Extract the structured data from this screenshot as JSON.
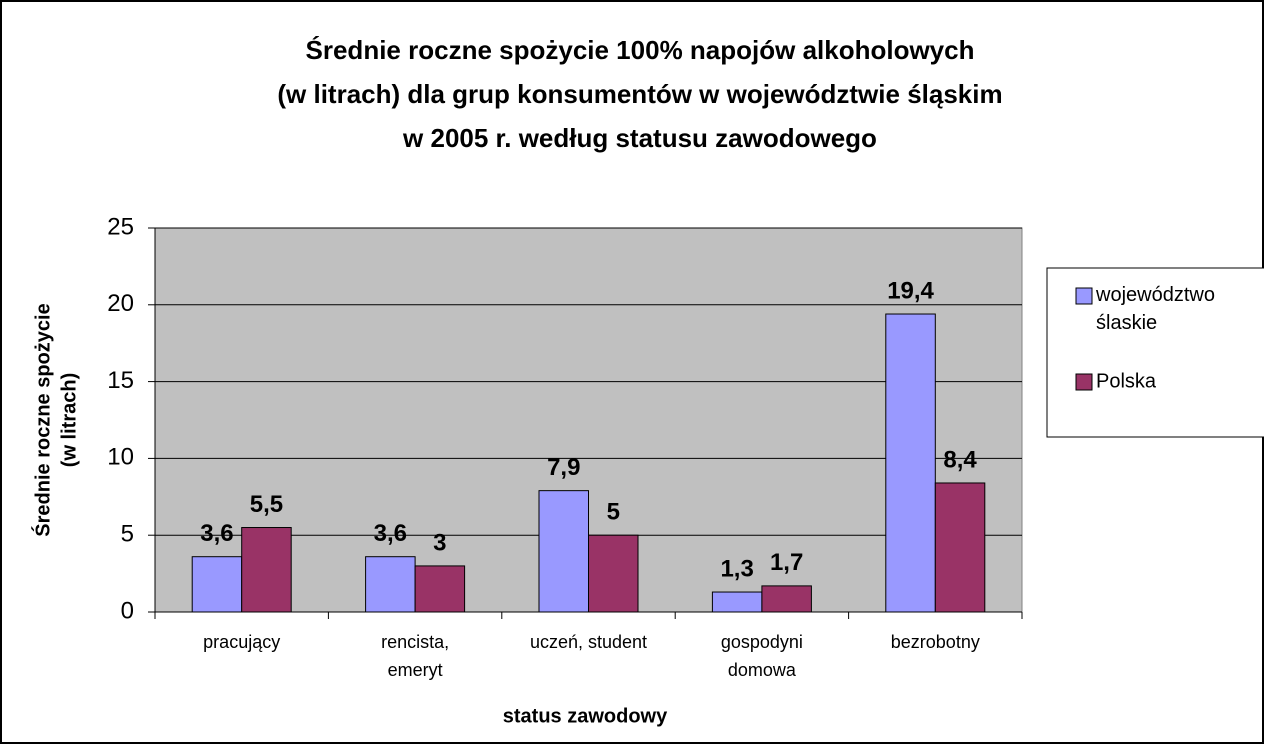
{
  "chart_data": {
    "type": "bar",
    "title": [
      "Średnie roczne spożycie 100% napojów alkoholowych",
      "(w litrach) dla grup konsumentów w województwie śląskim",
      "w 2005 r. według statusu zawodowego"
    ],
    "y_label": [
      "Średnie roczne spożycie",
      "(w litrach)"
    ],
    "x_label": "status zawodowy",
    "categories": [
      [
        "pracujący"
      ],
      [
        "rencista,",
        "emeryt"
      ],
      [
        "uczeń, student"
      ],
      [
        "gospodyni",
        "domowa"
      ],
      [
        "bezrobotny"
      ]
    ],
    "series": [
      {
        "name": "województwo ślaskie",
        "color": "#9999ff",
        "values": [
          3.6,
          3.6,
          7.9,
          1.3,
          19.4
        ],
        "value_labels": [
          "3,6",
          "3,6",
          "7,9",
          "1,3",
          "19,4"
        ]
      },
      {
        "name": "Polska",
        "color": "#993366",
        "values": [
          5.5,
          3,
          5,
          1.7,
          8.4
        ],
        "value_labels": [
          "5,5",
          "3",
          "5",
          "1,7",
          "8,4"
        ]
      }
    ],
    "ylim": [
      0,
      25
    ],
    "yticks": [
      0,
      5,
      10,
      15,
      20,
      25
    ],
    "grid": true,
    "plot_background": "#c0c0c0",
    "legend": "right"
  }
}
